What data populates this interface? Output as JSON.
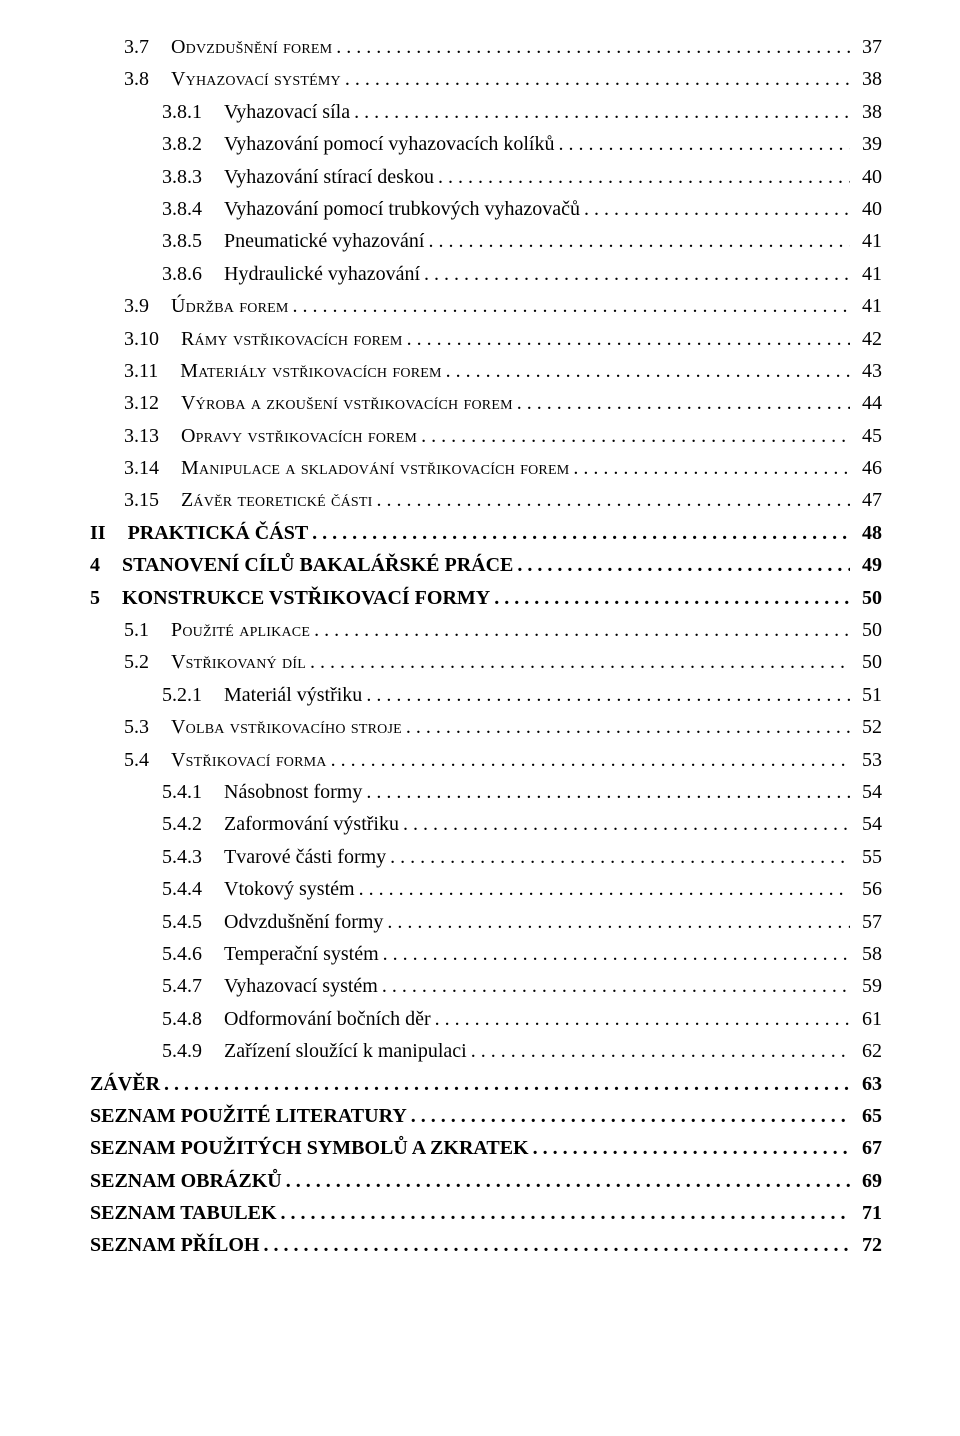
{
  "toc": [
    {
      "level": "lvl-1",
      "num": "3.7",
      "title": "Odvzdušnění forem",
      "page": "37",
      "bold": false,
      "smallcaps": true
    },
    {
      "level": "lvl-1",
      "num": "3.8",
      "title": "Vyhazovací systémy",
      "page": "38",
      "bold": false,
      "smallcaps": true
    },
    {
      "level": "lvl-2",
      "num": "3.8.1",
      "title": "Vyhazovací síla",
      "page": "38",
      "bold": false,
      "smallcaps": false
    },
    {
      "level": "lvl-2",
      "num": "3.8.2",
      "title": "Vyhazování pomocí vyhazovacích kolíků",
      "page": "39",
      "bold": false,
      "smallcaps": false
    },
    {
      "level": "lvl-2",
      "num": "3.8.3",
      "title": "Vyhazování stírací deskou",
      "page": "40",
      "bold": false,
      "smallcaps": false
    },
    {
      "level": "lvl-2",
      "num": "3.8.4",
      "title": "Vyhazování pomocí trubkových vyhazovačů",
      "page": "40",
      "bold": false,
      "smallcaps": false
    },
    {
      "level": "lvl-2",
      "num": "3.8.5",
      "title": "Pneumatické vyhazování",
      "page": "41",
      "bold": false,
      "smallcaps": false
    },
    {
      "level": "lvl-2",
      "num": "3.8.6",
      "title": "Hydraulické vyhazování",
      "page": "41",
      "bold": false,
      "smallcaps": false
    },
    {
      "level": "lvl-1",
      "num": "3.9",
      "title": "Údržba forem",
      "page": "41",
      "bold": false,
      "smallcaps": true
    },
    {
      "level": "lvl-1",
      "num": "3.10",
      "title": "Rámy vstřikovacích forem",
      "page": "42",
      "bold": false,
      "smallcaps": true
    },
    {
      "level": "lvl-1",
      "num": "3.11",
      "title": "Materiály vstřikovacích forem",
      "page": "43",
      "bold": false,
      "smallcaps": true
    },
    {
      "level": "lvl-1",
      "num": "3.12",
      "title": "Výroba a zkoušení vstřikovacích forem",
      "page": "44",
      "bold": false,
      "smallcaps": true
    },
    {
      "level": "lvl-1",
      "num": "3.13",
      "title": "Opravy vstřikovacích forem",
      "page": "45",
      "bold": false,
      "smallcaps": true
    },
    {
      "level": "lvl-1",
      "num": "3.14",
      "title": "Manipulace a skladování vstřikovacích forem",
      "page": "46",
      "bold": false,
      "smallcaps": true
    },
    {
      "level": "lvl-1",
      "num": "3.15",
      "title": "Závěr teoretické části",
      "page": "47",
      "bold": false,
      "smallcaps": true
    },
    {
      "level": "lvl-0",
      "num": "II",
      "title": "PRAKTICKÁ ČÁST",
      "page": "48",
      "bold": true,
      "smallcaps": false
    },
    {
      "level": "lvl-chapter",
      "num": "4",
      "title": "STANOVENÍ CÍLŮ BAKALÁŘSKÉ PRÁCE",
      "page": "49",
      "bold": true,
      "smallcaps": false
    },
    {
      "level": "lvl-chapter",
      "num": "5",
      "title": "KONSTRUKCE VSTŘIKOVACÍ FORMY",
      "page": "50",
      "bold": true,
      "smallcaps": false
    },
    {
      "level": "lvl-1",
      "num": "5.1",
      "title": "Použité aplikace",
      "page": "50",
      "bold": false,
      "smallcaps": true
    },
    {
      "level": "lvl-1",
      "num": "5.2",
      "title": "Vstřikovaný díl",
      "page": "50",
      "bold": false,
      "smallcaps": true
    },
    {
      "level": "lvl-2",
      "num": "5.2.1",
      "title": "Materiál výstřiku",
      "page": "51",
      "bold": false,
      "smallcaps": false
    },
    {
      "level": "lvl-1",
      "num": "5.3",
      "title": "Volba vstřikovacího stroje",
      "page": "52",
      "bold": false,
      "smallcaps": true
    },
    {
      "level": "lvl-1",
      "num": "5.4",
      "title": "Vstřikovací forma",
      "page": "53",
      "bold": false,
      "smallcaps": true
    },
    {
      "level": "lvl-2",
      "num": "5.4.1",
      "title": "Násobnost formy",
      "page": "54",
      "bold": false,
      "smallcaps": false
    },
    {
      "level": "lvl-2",
      "num": "5.4.2",
      "title": "Zaformování výstřiku",
      "page": "54",
      "bold": false,
      "smallcaps": false
    },
    {
      "level": "lvl-2",
      "num": "5.4.3",
      "title": "Tvarové části formy",
      "page": "55",
      "bold": false,
      "smallcaps": false
    },
    {
      "level": "lvl-2",
      "num": "5.4.4",
      "title": "Vtokový systém",
      "page": "56",
      "bold": false,
      "smallcaps": false
    },
    {
      "level": "lvl-2",
      "num": "5.4.5",
      "title": "Odvzdušnění formy",
      "page": "57",
      "bold": false,
      "smallcaps": false
    },
    {
      "level": "lvl-2",
      "num": "5.4.6",
      "title": "Temperační systém",
      "page": "58",
      "bold": false,
      "smallcaps": false
    },
    {
      "level": "lvl-2",
      "num": "5.4.7",
      "title": "Vyhazovací systém",
      "page": "59",
      "bold": false,
      "smallcaps": false
    },
    {
      "level": "lvl-2",
      "num": "5.4.8",
      "title": "Odformování bočních děr",
      "page": "61",
      "bold": false,
      "smallcaps": false
    },
    {
      "level": "lvl-2",
      "num": "5.4.9",
      "title": "Zařízení sloužící k manipulaci",
      "page": "62",
      "bold": false,
      "smallcaps": false
    },
    {
      "level": "lvl-0",
      "num": "",
      "title": "ZÁVĚR",
      "page": "63",
      "bold": true,
      "smallcaps": false
    },
    {
      "level": "lvl-0",
      "num": "",
      "title": "SEZNAM POUŽITÉ LITERATURY",
      "page": "65",
      "bold": true,
      "smallcaps": false
    },
    {
      "level": "lvl-0",
      "num": "",
      "title": "SEZNAM POUŽITÝCH SYMBOLŮ A ZKRATEK",
      "page": "67",
      "bold": true,
      "smallcaps": false
    },
    {
      "level": "lvl-0",
      "num": "",
      "title": "SEZNAM OBRÁZKŮ",
      "page": "69",
      "bold": true,
      "smallcaps": false
    },
    {
      "level": "lvl-0",
      "num": "",
      "title": "SEZNAM TABULEK",
      "page": "71",
      "bold": true,
      "smallcaps": false
    },
    {
      "level": "lvl-0",
      "num": "",
      "title": "SEZNAM PŘÍLOH",
      "page": "72",
      "bold": true,
      "smallcaps": false
    }
  ]
}
